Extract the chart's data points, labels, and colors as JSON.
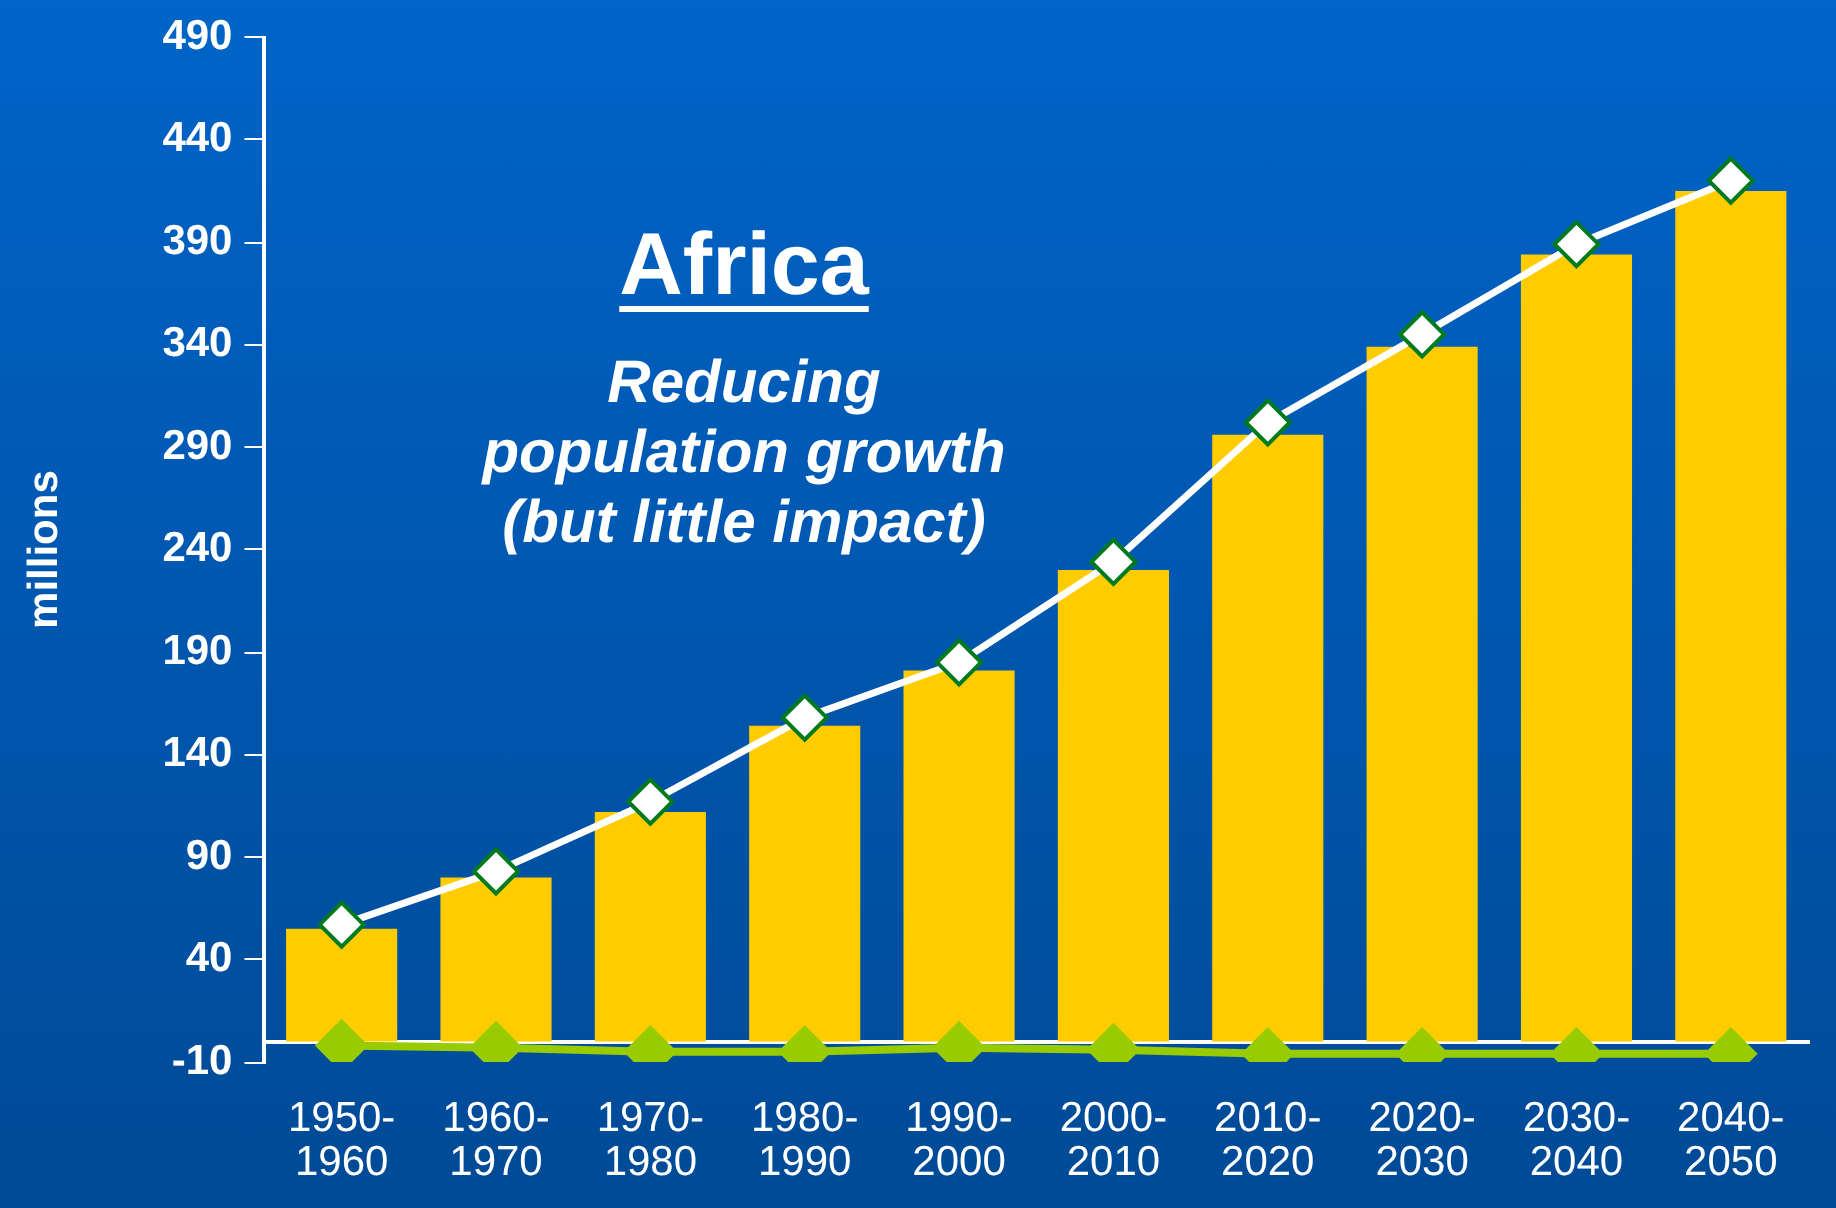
{
  "chart_data": {
    "type": "bar",
    "title": "Africa",
    "subtitle": "Reducing\npopulation growth\n(but little impact)",
    "ylabel": "millions",
    "categories": [
      "1950-\n1960",
      "1960-\n1970",
      "1970-\n1980",
      "1980-\n1990",
      "1990-\n2000",
      "2000-\n2010",
      "2010-\n2020",
      "2020-\n2030",
      "2030-\n2040",
      "2040-\n2050"
    ],
    "series": [
      {
        "color": "#ffcc00",
        "values": [
          55,
          80,
          112,
          154,
          181,
          230,
          296,
          339,
          384,
          415
        ]
      },
      {
        "type": "line",
        "color": "#ffffff",
        "values": [
          57,
          83,
          117,
          158,
          185,
          234,
          302,
          345,
          389,
          420
        ]
      },
      {
        "type": "line",
        "color": "#99cc00",
        "values": [
          -2,
          -3,
          -5,
          -5,
          -3,
          -4,
          -6,
          -6,
          -6,
          -6
        ]
      }
    ],
    "ylim": [
      -10,
      490
    ],
    "yticks": [
      -10,
      40,
      90,
      140,
      190,
      240,
      290,
      340,
      390,
      440,
      490
    ],
    "grid": false,
    "legend": false,
    "marker": "diamond",
    "line_style": "solid"
  }
}
